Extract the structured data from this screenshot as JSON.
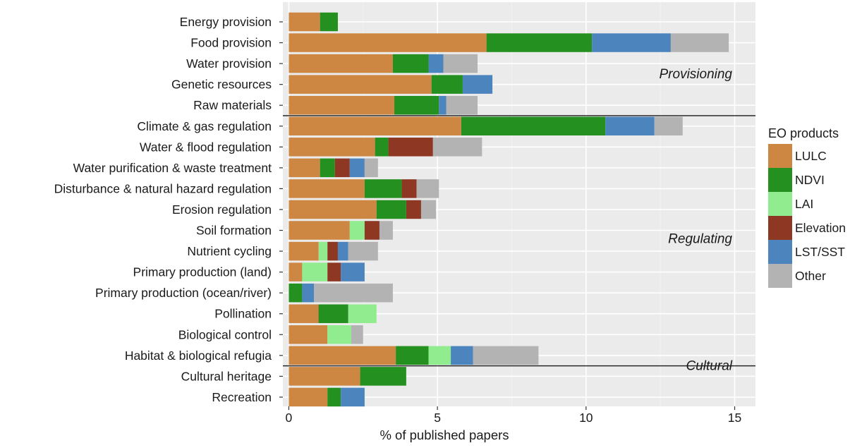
{
  "chart_data": {
    "type": "bar",
    "orientation": "horizontal",
    "stacked": true,
    "xlabel": "% of published papers",
    "xlim": [
      -0.2,
      15.7
    ],
    "xticks": [
      0,
      5,
      10,
      15
    ],
    "grid": true,
    "legend_position": "right",
    "legend_title": "EO products",
    "categories": [
      "Energy provision",
      "Food provision",
      "Water provision",
      "Genetic resources",
      "Raw materials",
      "Climate & gas regulation",
      "Water & flood regulation",
      "Water purification & waste treatment",
      "Disturbance & natural hazard regulation",
      "Erosion regulation",
      "Soil formation",
      "Nutrient cycling",
      "Primary production (land)",
      "Primary production (ocean/river)",
      "Pollination",
      "Biological control",
      "Habitat & biological refugia",
      "Cultural heritage",
      "Recreation"
    ],
    "series": [
      {
        "name": "LULC",
        "color": "#CD8743",
        "values": [
          1.05,
          6.65,
          3.5,
          4.8,
          3.55,
          5.8,
          2.9,
          1.05,
          2.55,
          2.95,
          2.05,
          1.0,
          0.45,
          0.0,
          1.0,
          1.3,
          3.6,
          2.4,
          1.3
        ]
      },
      {
        "name": "NDVI",
        "color": "#24901F",
        "values": [
          0.6,
          3.55,
          1.2,
          1.05,
          1.5,
          4.85,
          0.45,
          0.5,
          1.25,
          1.0,
          0.0,
          0.0,
          0.0,
          0.45,
          1.0,
          0.0,
          1.1,
          1.55,
          0.45
        ]
      },
      {
        "name": "LAI",
        "color": "#90EC8E",
        "values": [
          0,
          0,
          0,
          0,
          0,
          0,
          0,
          0,
          0,
          0,
          0.5,
          0.3,
          0.85,
          0.0,
          0.95,
          0.8,
          0.75,
          0,
          0
        ]
      },
      {
        "name": "Elevation",
        "color": "#8E3824",
        "values": [
          0,
          0,
          0,
          0,
          0,
          0,
          1.5,
          0.5,
          0.5,
          0.5,
          0.5,
          0.35,
          0.45,
          0,
          0,
          0,
          0,
          0,
          0
        ]
      },
      {
        "name": "LST/SST",
        "color": "#4C84BE",
        "values": [
          0,
          2.65,
          0.5,
          1.0,
          0.25,
          1.65,
          0.0,
          0.5,
          0.0,
          0.0,
          0.0,
          0.35,
          0.8,
          0.4,
          0,
          0,
          0.75,
          0,
          0.8
        ]
      },
      {
        "name": "Other",
        "color": "#B3B3B3",
        "values": [
          0,
          1.95,
          1.15,
          0,
          1.05,
          0.95,
          1.65,
          0.45,
          0.75,
          0.5,
          0.45,
          1.0,
          0,
          2.65,
          0,
          0.4,
          2.2,
          0,
          0
        ]
      }
    ],
    "groups": [
      {
        "label": "Provisioning",
        "first": 0,
        "last": 4
      },
      {
        "label": "Regulating",
        "first": 5,
        "last": 16
      },
      {
        "label": "Cultural",
        "first": 17,
        "last": 18
      }
    ]
  },
  "colors": {
    "panel_background": "#EBEBEB",
    "grid_major": "#FFFFFF",
    "grid_minor": "#F2F2F2",
    "separator": "#1A1A1A",
    "tick_color": "#333333"
  }
}
